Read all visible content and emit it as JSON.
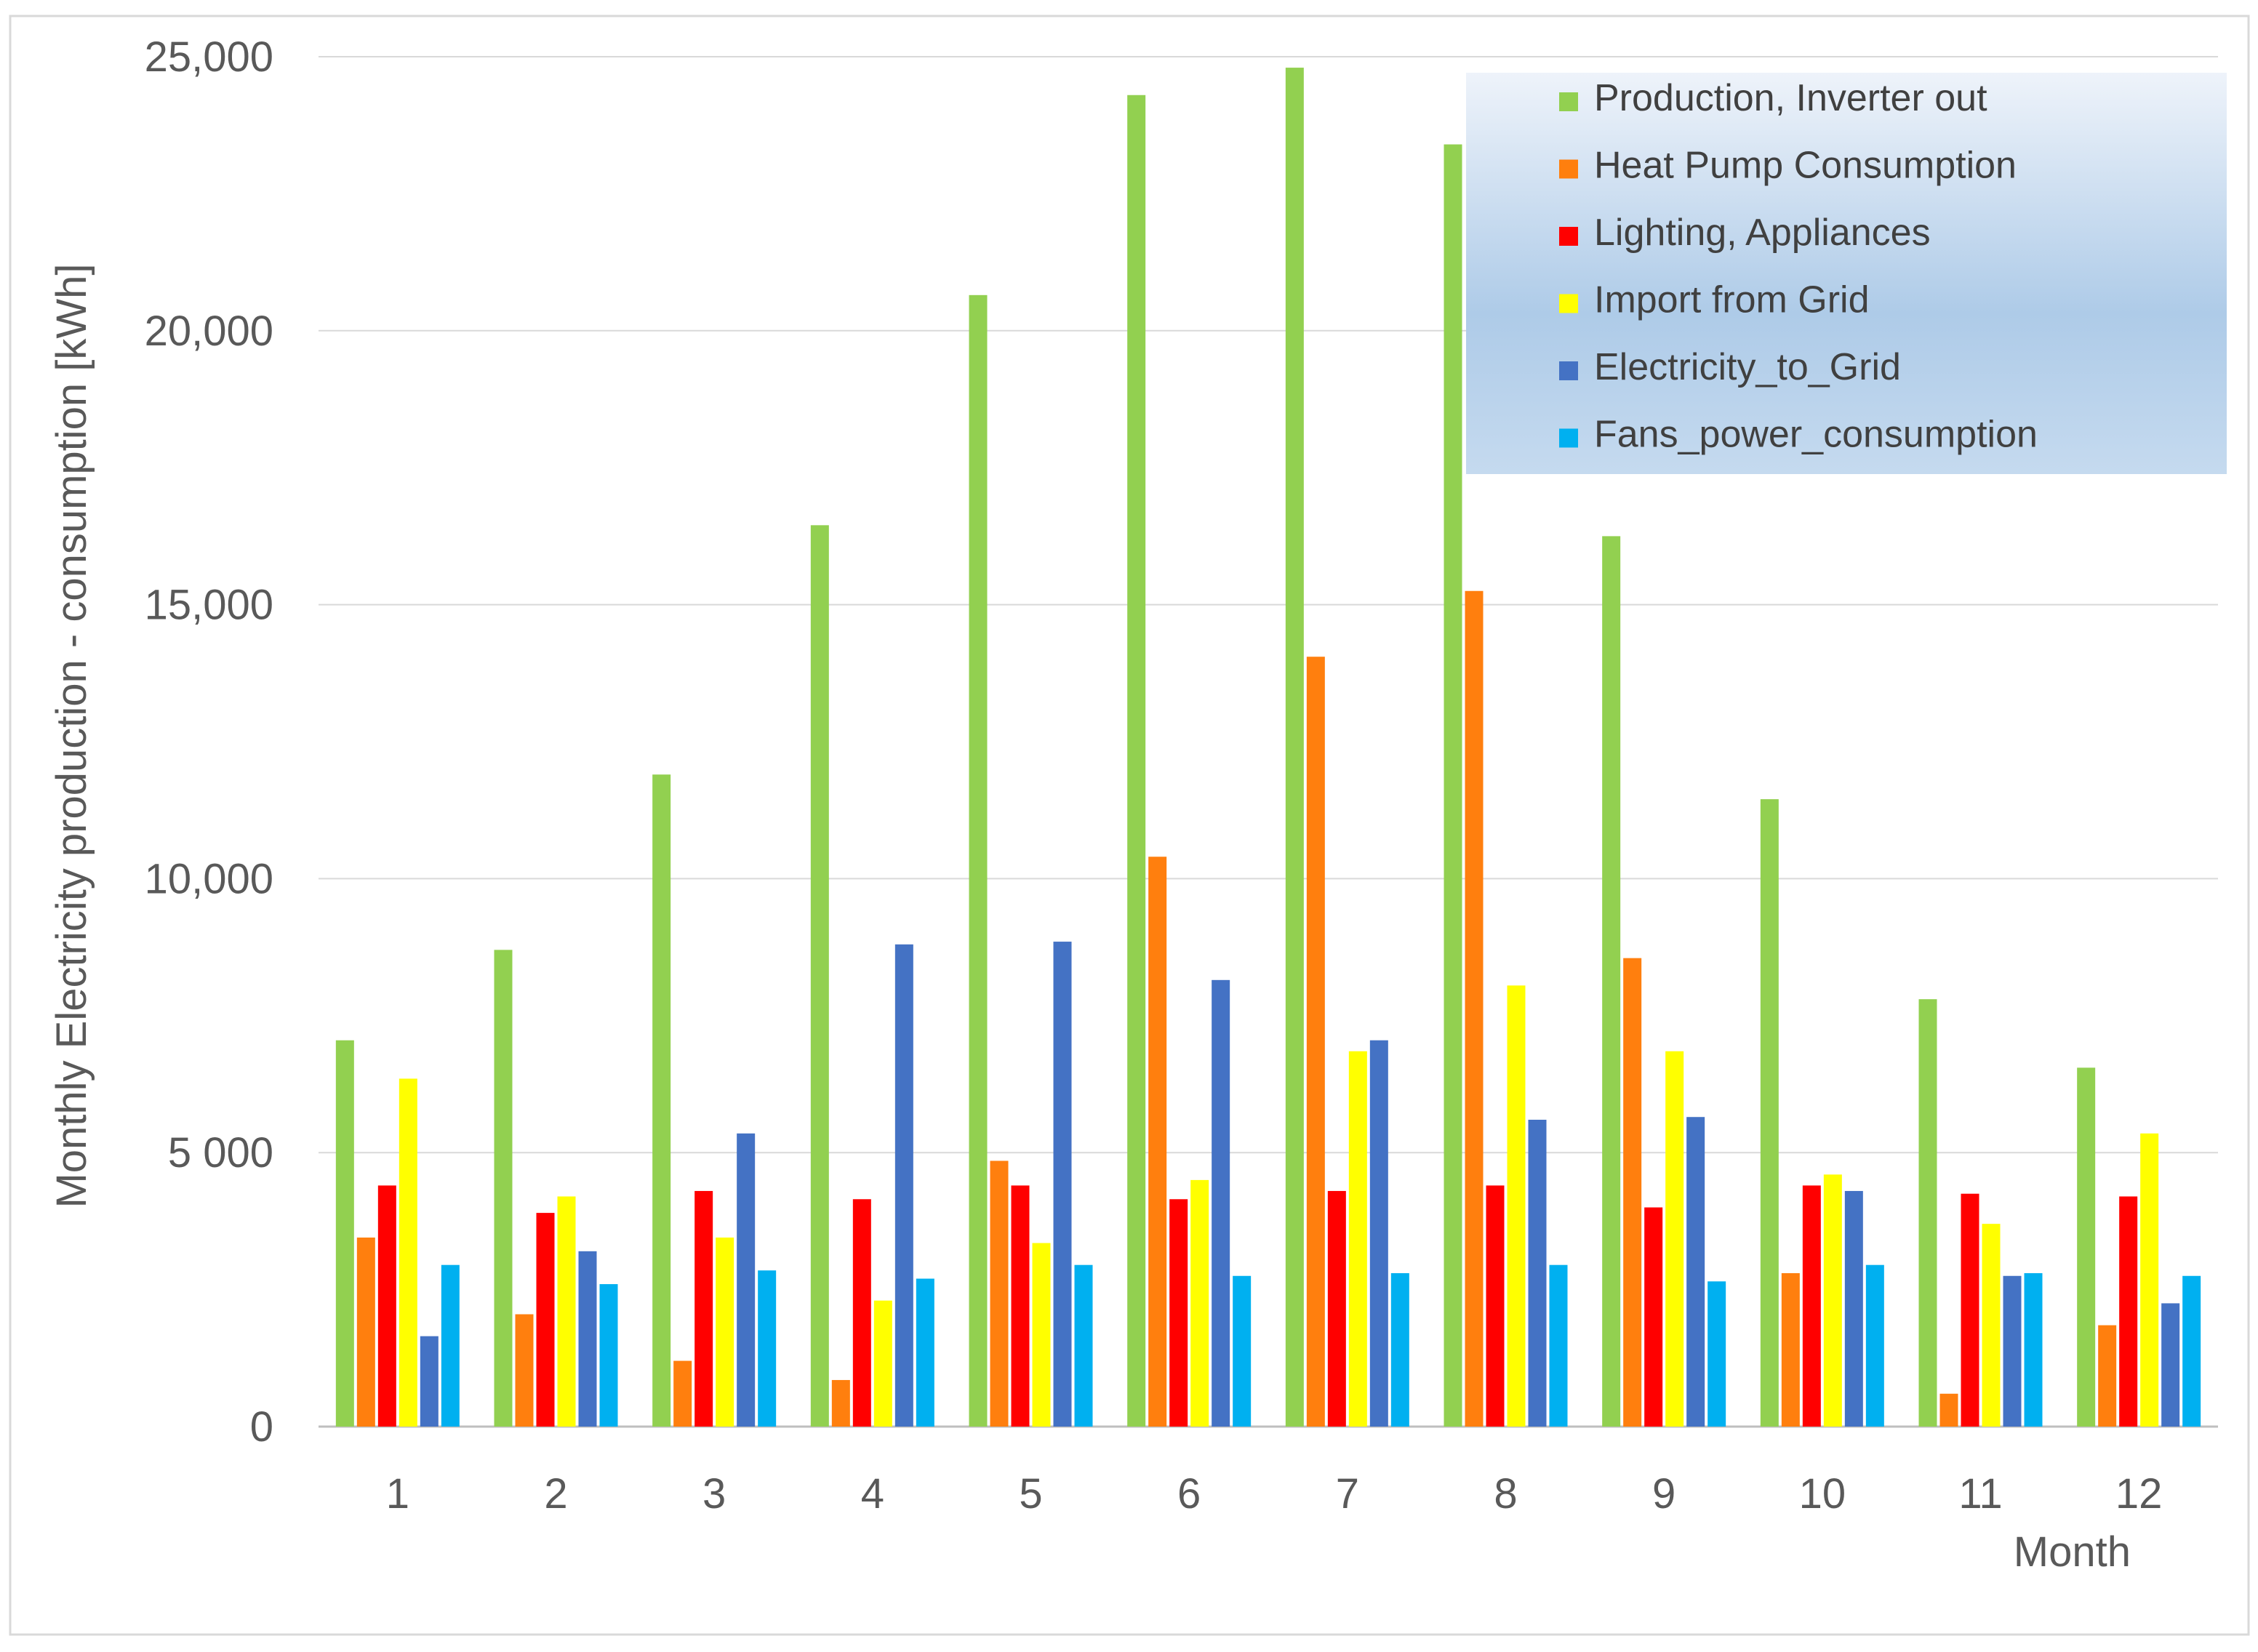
{
  "chart_data": {
    "type": "bar",
    "title": "",
    "xlabel": "Month",
    "ylabel": "Monthly Electricity production - consumption [kWh]",
    "ylim": [
      0,
      25000
    ],
    "grid": true,
    "legend_position": "top-right",
    "y_ticks": [
      {
        "value": 0,
        "label": "0"
      },
      {
        "value": 5000,
        "label": "5 000"
      },
      {
        "value": 10000,
        "label": "10,000"
      },
      {
        "value": 15000,
        "label": "15,000"
      },
      {
        "value": 20000,
        "label": "20,000"
      },
      {
        "value": 25000,
        "label": "25,000"
      }
    ],
    "categories": [
      "1",
      "2",
      "3",
      "4",
      "5",
      "6",
      "7",
      "8",
      "9",
      "10",
      "11",
      "12"
    ],
    "series": [
      {
        "name": "Production, Inverter out",
        "color": "#92D050",
        "values": [
          7050,
          8700,
          11900,
          16450,
          20650,
          24300,
          24800,
          23400,
          16250,
          11450,
          7800,
          6550
        ]
      },
      {
        "name": "Heat Pump Consumption",
        "color": "#FF7F0E",
        "values": [
          3450,
          2050,
          1200,
          850,
          4850,
          10400,
          14050,
          15250,
          8550,
          2800,
          600,
          1850
        ]
      },
      {
        "name": "Lighting, Appliances",
        "color": "#FF0000",
        "values": [
          4400,
          3900,
          4300,
          4150,
          4400,
          4150,
          4300,
          4400,
          4000,
          4400,
          4250,
          4200
        ]
      },
      {
        "name": "Import from Grid",
        "color": "#FFFF00",
        "values": [
          6350,
          4200,
          3450,
          2300,
          3350,
          4500,
          6850,
          8050,
          6850,
          4600,
          3700,
          5350
        ]
      },
      {
        "name": "Electricity_to_Grid",
        "color": "#4472C4",
        "values": [
          1650,
          3200,
          5350,
          8800,
          8850,
          8150,
          7050,
          5600,
          5650,
          4300,
          2750,
          2250
        ]
      },
      {
        "name": "Fans_power_consumption",
        "color": "#00B0F0",
        "values": [
          2950,
          2600,
          2850,
          2700,
          2950,
          2750,
          2800,
          2950,
          2650,
          2950,
          2800,
          2750
        ]
      }
    ]
  }
}
